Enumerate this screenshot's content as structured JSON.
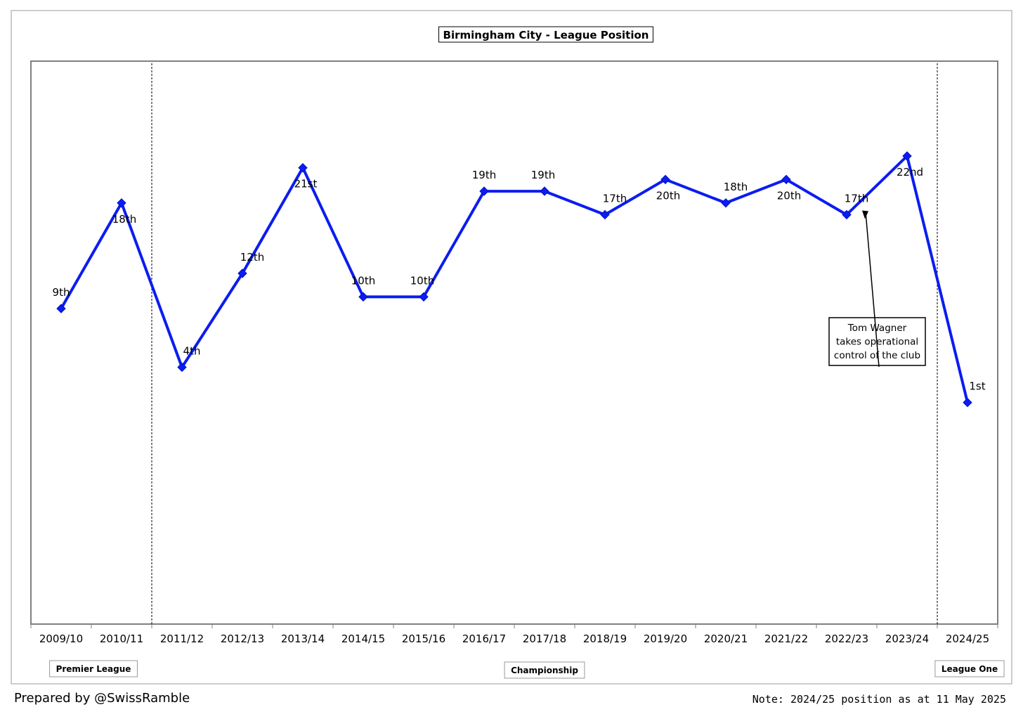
{
  "chart_data": {
    "type": "line",
    "title": "Birmingham City - League Position",
    "categories": [
      "2009/10",
      "2010/11",
      "2011/12",
      "2012/13",
      "2013/14",
      "2014/15",
      "2015/16",
      "2016/17",
      "2017/18",
      "2018/19",
      "2019/20",
      "2020/21",
      "2021/22",
      "2022/23",
      "2023/24",
      "2024/25"
    ],
    "series": [
      {
        "values": [
          9,
          18,
          4,
          12,
          21,
          10,
          10,
          19,
          19,
          17,
          20,
          18,
          20,
          17,
          22,
          1
        ],
        "labels": [
          "9th",
          "18th",
          "4th",
          "12th",
          "21st",
          "10th",
          "10th",
          "19th",
          "19th",
          "17th",
          "20th",
          "18th",
          "20th",
          "17th",
          "22nd",
          "1st"
        ],
        "levels": [
          "Premier League",
          "Premier League",
          "Championship",
          "Championship",
          "Championship",
          "Championship",
          "Championship",
          "Championship",
          "Championship",
          "Championship",
          "Championship",
          "Championship",
          "Championship",
          "Championship",
          "Championship",
          "League One"
        ]
      }
    ],
    "xlabel": "",
    "ylabel": "",
    "division_labels": [
      "Premier League",
      "Championship",
      "League One"
    ],
    "division_boundaries": [
      "2010/11|2011/12",
      "2023/24|2024/25"
    ],
    "annotation": {
      "lines": [
        "Tom Wagner",
        "takes operational",
        "control of the club"
      ],
      "points_to": "2022/23"
    },
    "grid": false,
    "legend": "none",
    "line_color": "#0b1df0"
  },
  "footer": {
    "credit": "Prepared by @SwissRamble",
    "note": "Note: 2024/25 position as at 11 May 2025"
  }
}
